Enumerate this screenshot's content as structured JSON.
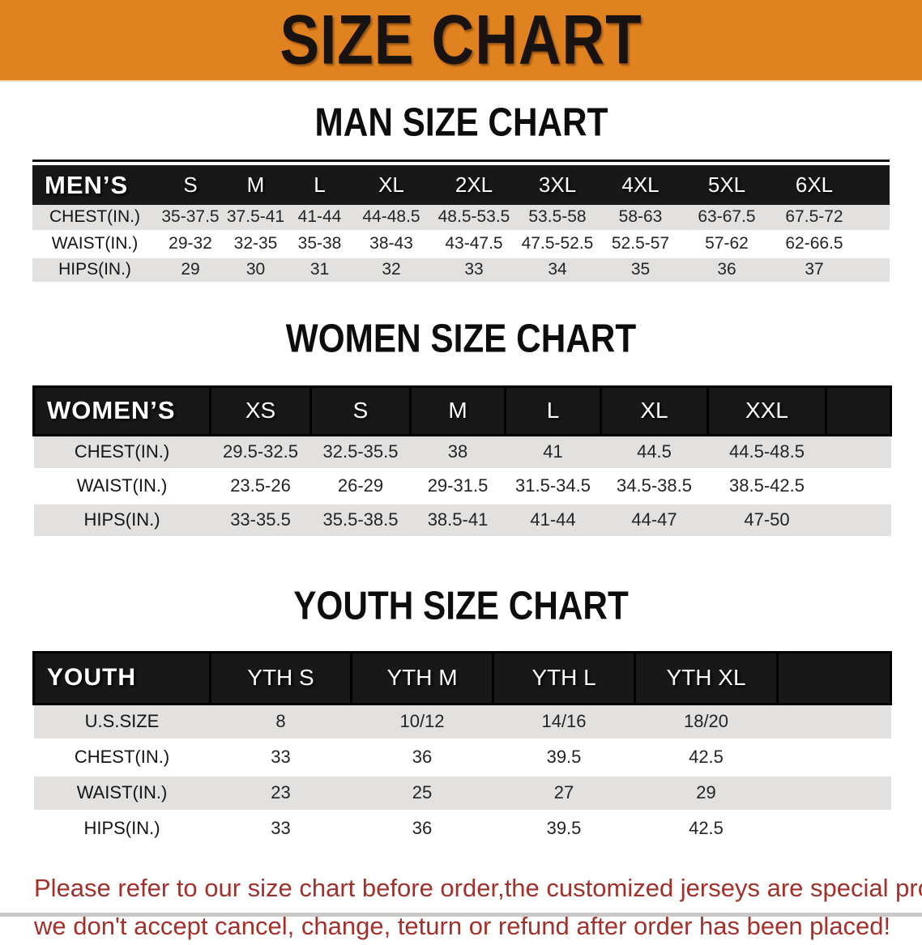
{
  "banner": {
    "title": "SIZE CHART",
    "bg_color": "#E0821F"
  },
  "sections": [
    {
      "id": "men",
      "heading": "MAN SIZE CHART",
      "corner_label": "MEN’S",
      "columns": [
        "S",
        "M",
        "L",
        "XL",
        "2XL",
        "3XL",
        "4XL",
        "5XL",
        "6XL"
      ],
      "rows": [
        {
          "label": "CHEST(IN.)",
          "values": [
            "35-37.5",
            "37.5-41",
            "41-44",
            "44-48.5",
            "48.5-53.5",
            "53.5-58",
            "58-63",
            "63-67.5",
            "67.5-72"
          ]
        },
        {
          "label": "WAIST(IN.)",
          "values": [
            "29-32",
            "32-35",
            "35-38",
            "38-43",
            "43-47.5",
            "47.5-52.5",
            "52.5-57",
            "57-62",
            "62-66.5"
          ]
        },
        {
          "label": "HIPS(IN.)",
          "values": [
            "29",
            "30",
            "31",
            "32",
            "33",
            "34",
            "35",
            "36",
            "37"
          ]
        }
      ]
    },
    {
      "id": "women",
      "heading": "WOMEN SIZE CHART",
      "corner_label": "WOMEN’S",
      "columns": [
        "XS",
        "S",
        "M",
        "L",
        "XL",
        "XXL"
      ],
      "rows": [
        {
          "label": "CHEST(IN.)",
          "values": [
            "29.5-32.5",
            "32.5-35.5",
            "38",
            "41",
            "44.5",
            "44.5-48.5"
          ]
        },
        {
          "label": "WAIST(IN.)",
          "values": [
            "23.5-26",
            "26-29",
            "29-31.5",
            "31.5-34.5",
            "34.5-38.5",
            "38.5-42.5"
          ]
        },
        {
          "label": "HIPS(IN.)",
          "values": [
            "33-35.5",
            "35.5-38.5",
            "38.5-41",
            "41-44",
            "44-47",
            "47-50"
          ]
        }
      ]
    },
    {
      "id": "youth",
      "heading": "YOUTH SIZE CHART",
      "corner_label": "YOUTH",
      "columns": [
        "YTH S",
        "YTH M",
        "YTH L",
        "YTH XL"
      ],
      "rows": [
        {
          "label": "U.S.SIZE",
          "values": [
            "8",
            "10/12",
            "14/16",
            "18/20"
          ]
        },
        {
          "label": "CHEST(IN.)",
          "values": [
            "33",
            "36",
            "39.5",
            "42.5"
          ]
        },
        {
          "label": "WAIST(IN.)",
          "values": [
            "23",
            "25",
            "27",
            "29"
          ]
        },
        {
          "label": "HIPS(IN.)",
          "values": [
            "33",
            "36",
            "39.5",
            "42.5"
          ]
        }
      ]
    }
  ],
  "footer": {
    "line1": "Please refer to our size chart before order,the customized jerseys are special products,",
    "line2": "we don't accept cancel, change, teturn or refund after order has been placed!",
    "text_color": "#A3302A"
  }
}
